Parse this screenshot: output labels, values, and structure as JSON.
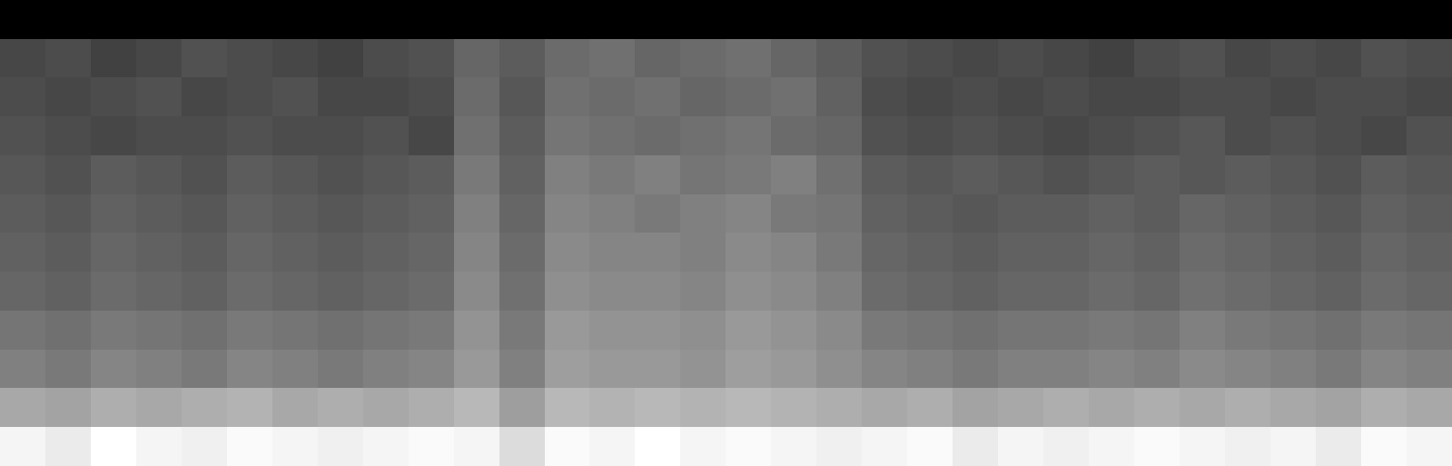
{
  "chart_data": {
    "type": "heatmap",
    "color": "gray",
    "tick_labels": false,
    "cells": [
      [
        0.02,
        0.02,
        0.02,
        0.02,
        0.02,
        0.02,
        0.02,
        0.02,
        0.02,
        0.02,
        0.02,
        0.02,
        0.02,
        0.02,
        0.02,
        0.02,
        0.02,
        0.02,
        0.02,
        0.02,
        0.02,
        0.02,
        0.02,
        0.02,
        0.02,
        0.02,
        0.02,
        0.02,
        0.02,
        0.02,
        0.02,
        0.02
      ],
      [
        0.16,
        0.17,
        0.15,
        0.16,
        0.18,
        0.17,
        0.16,
        0.15,
        0.17,
        0.18,
        0.22,
        0.2,
        0.23,
        0.24,
        0.22,
        0.23,
        0.24,
        0.22,
        0.2,
        0.18,
        0.17,
        0.16,
        0.17,
        0.16,
        0.15,
        0.17,
        0.18,
        0.16,
        0.17,
        0.16,
        0.18,
        0.17
      ],
      [
        0.17,
        0.16,
        0.17,
        0.18,
        0.16,
        0.17,
        0.18,
        0.16,
        0.16,
        0.17,
        0.23,
        0.19,
        0.24,
        0.23,
        0.24,
        0.22,
        0.23,
        0.24,
        0.21,
        0.17,
        0.16,
        0.17,
        0.16,
        0.17,
        0.16,
        0.16,
        0.17,
        0.17,
        0.16,
        0.17,
        0.17,
        0.16
      ],
      [
        0.18,
        0.17,
        0.16,
        0.17,
        0.17,
        0.18,
        0.17,
        0.17,
        0.18,
        0.16,
        0.24,
        0.2,
        0.25,
        0.24,
        0.23,
        0.24,
        0.25,
        0.23,
        0.22,
        0.18,
        0.17,
        0.18,
        0.17,
        0.16,
        0.17,
        0.18,
        0.19,
        0.17,
        0.18,
        0.17,
        0.16,
        0.18
      ],
      [
        0.19,
        0.18,
        0.2,
        0.19,
        0.18,
        0.2,
        0.19,
        0.18,
        0.19,
        0.2,
        0.26,
        0.21,
        0.27,
        0.26,
        0.27,
        0.25,
        0.26,
        0.27,
        0.24,
        0.2,
        0.19,
        0.2,
        0.19,
        0.18,
        0.19,
        0.2,
        0.19,
        0.2,
        0.19,
        0.18,
        0.2,
        0.19
      ],
      [
        0.2,
        0.19,
        0.21,
        0.2,
        0.19,
        0.21,
        0.2,
        0.19,
        0.2,
        0.21,
        0.27,
        0.22,
        0.28,
        0.27,
        0.26,
        0.27,
        0.28,
        0.26,
        0.25,
        0.21,
        0.2,
        0.19,
        0.2,
        0.2,
        0.21,
        0.2,
        0.22,
        0.21,
        0.2,
        0.19,
        0.21,
        0.2
      ],
      [
        0.21,
        0.2,
        0.22,
        0.21,
        0.2,
        0.22,
        0.21,
        0.2,
        0.21,
        0.22,
        0.28,
        0.23,
        0.29,
        0.28,
        0.28,
        0.27,
        0.29,
        0.28,
        0.26,
        0.22,
        0.21,
        0.2,
        0.21,
        0.21,
        0.22,
        0.21,
        0.23,
        0.22,
        0.21,
        0.2,
        0.22,
        0.21
      ],
      [
        0.22,
        0.21,
        0.23,
        0.22,
        0.21,
        0.23,
        0.22,
        0.21,
        0.22,
        0.23,
        0.29,
        0.24,
        0.3,
        0.29,
        0.29,
        0.28,
        0.3,
        0.29,
        0.27,
        0.23,
        0.22,
        0.21,
        0.22,
        0.22,
        0.23,
        0.22,
        0.24,
        0.23,
        0.22,
        0.21,
        0.23,
        0.22
      ],
      [
        0.25,
        0.24,
        0.26,
        0.25,
        0.24,
        0.26,
        0.25,
        0.24,
        0.25,
        0.26,
        0.31,
        0.26,
        0.32,
        0.31,
        0.31,
        0.3,
        0.32,
        0.31,
        0.29,
        0.26,
        0.25,
        0.24,
        0.25,
        0.25,
        0.26,
        0.25,
        0.27,
        0.26,
        0.25,
        0.24,
        0.26,
        0.25
      ],
      [
        0.27,
        0.26,
        0.28,
        0.27,
        0.26,
        0.28,
        0.27,
        0.26,
        0.27,
        0.28,
        0.32,
        0.27,
        0.33,
        0.32,
        0.32,
        0.31,
        0.33,
        0.32,
        0.3,
        0.28,
        0.27,
        0.26,
        0.27,
        0.27,
        0.28,
        0.27,
        0.29,
        0.28,
        0.27,
        0.26,
        0.28,
        0.27
      ],
      [
        0.35,
        0.34,
        0.36,
        0.35,
        0.36,
        0.37,
        0.35,
        0.36,
        0.35,
        0.36,
        0.38,
        0.33,
        0.38,
        0.37,
        0.38,
        0.37,
        0.38,
        0.37,
        0.36,
        0.35,
        0.36,
        0.34,
        0.35,
        0.36,
        0.35,
        0.36,
        0.35,
        0.36,
        0.35,
        0.34,
        0.36,
        0.35
      ],
      [
        0.5,
        0.48,
        0.52,
        0.5,
        0.49,
        0.51,
        0.5,
        0.49,
        0.5,
        0.51,
        0.5,
        0.45,
        0.51,
        0.5,
        0.52,
        0.5,
        0.51,
        0.5,
        0.49,
        0.5,
        0.51,
        0.48,
        0.5,
        0.49,
        0.5,
        0.51,
        0.5,
        0.49,
        0.5,
        0.48,
        0.51,
        0.5
      ]
    ]
  }
}
